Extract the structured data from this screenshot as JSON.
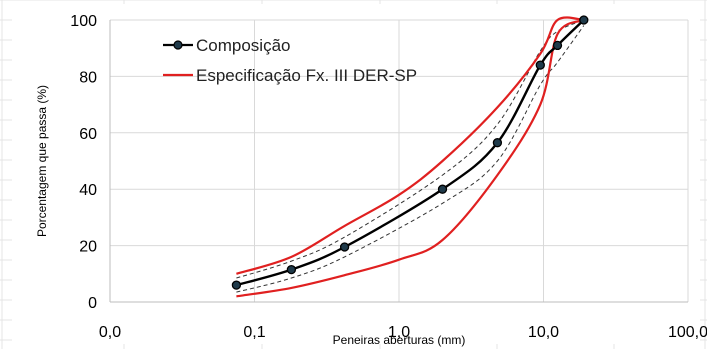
{
  "chart_data": {
    "type": "line",
    "xscale": "log",
    "xlim": [
      0.01,
      100
    ],
    "ylim": [
      0,
      100
    ],
    "xticks": [
      "0,0",
      "0,1",
      "1,0",
      "10,0",
      "100,0"
    ],
    "yticks": [
      "0",
      "20",
      "40",
      "60",
      "80",
      "100"
    ],
    "xlabel": "Peneiras aberturas (mm)",
    "ylabel": "Porcentagem que passa (%)",
    "legend_position": "top-left",
    "grid": true,
    "series": [
      {
        "name": "Composição",
        "color": "#000000",
        "marker": "circle",
        "x": [
          0.075,
          0.18,
          0.42,
          2.0,
          4.8,
          9.5,
          12.5,
          19.0
        ],
        "y": [
          6,
          11.5,
          19.5,
          40,
          56.5,
          84,
          91,
          100
        ]
      },
      {
        "name": "Especificação Fx. III DER-SP",
        "color": "#e02020",
        "role": "upper-limit",
        "x": [
          0.075,
          0.18,
          0.42,
          1.0,
          2.0,
          4.8,
          9.5,
          12.5,
          19.0
        ],
        "y": [
          10,
          16,
          27,
          38,
          50,
          69,
          88,
          100,
          100
        ]
      },
      {
        "name": "",
        "color": "#e02020",
        "role": "lower-limit",
        "x": [
          0.075,
          0.18,
          0.42,
          1.0,
          2.0,
          4.8,
          9.5,
          12.5,
          19.0
        ],
        "y": [
          2,
          5,
          9.5,
          15,
          22,
          45,
          70,
          95,
          100
        ]
      },
      {
        "name": "",
        "color": "#333333",
        "dashed": true,
        "role": "tolerance-upper",
        "x": [
          0.075,
          0.18,
          0.42,
          2.0,
          4.8,
          9.5,
          12.5,
          19.0
        ],
        "y": [
          8.5,
          14.5,
          23,
          45,
          63,
          89,
          96,
          100
        ]
      },
      {
        "name": "",
        "color": "#333333",
        "dashed": true,
        "role": "tolerance-lower",
        "x": [
          0.075,
          0.18,
          0.42,
          2.0,
          4.8,
          9.5,
          12.5,
          19.0
        ],
        "y": [
          3.5,
          8.5,
          16,
          35,
          50,
          77,
          85,
          98
        ]
      }
    ]
  }
}
